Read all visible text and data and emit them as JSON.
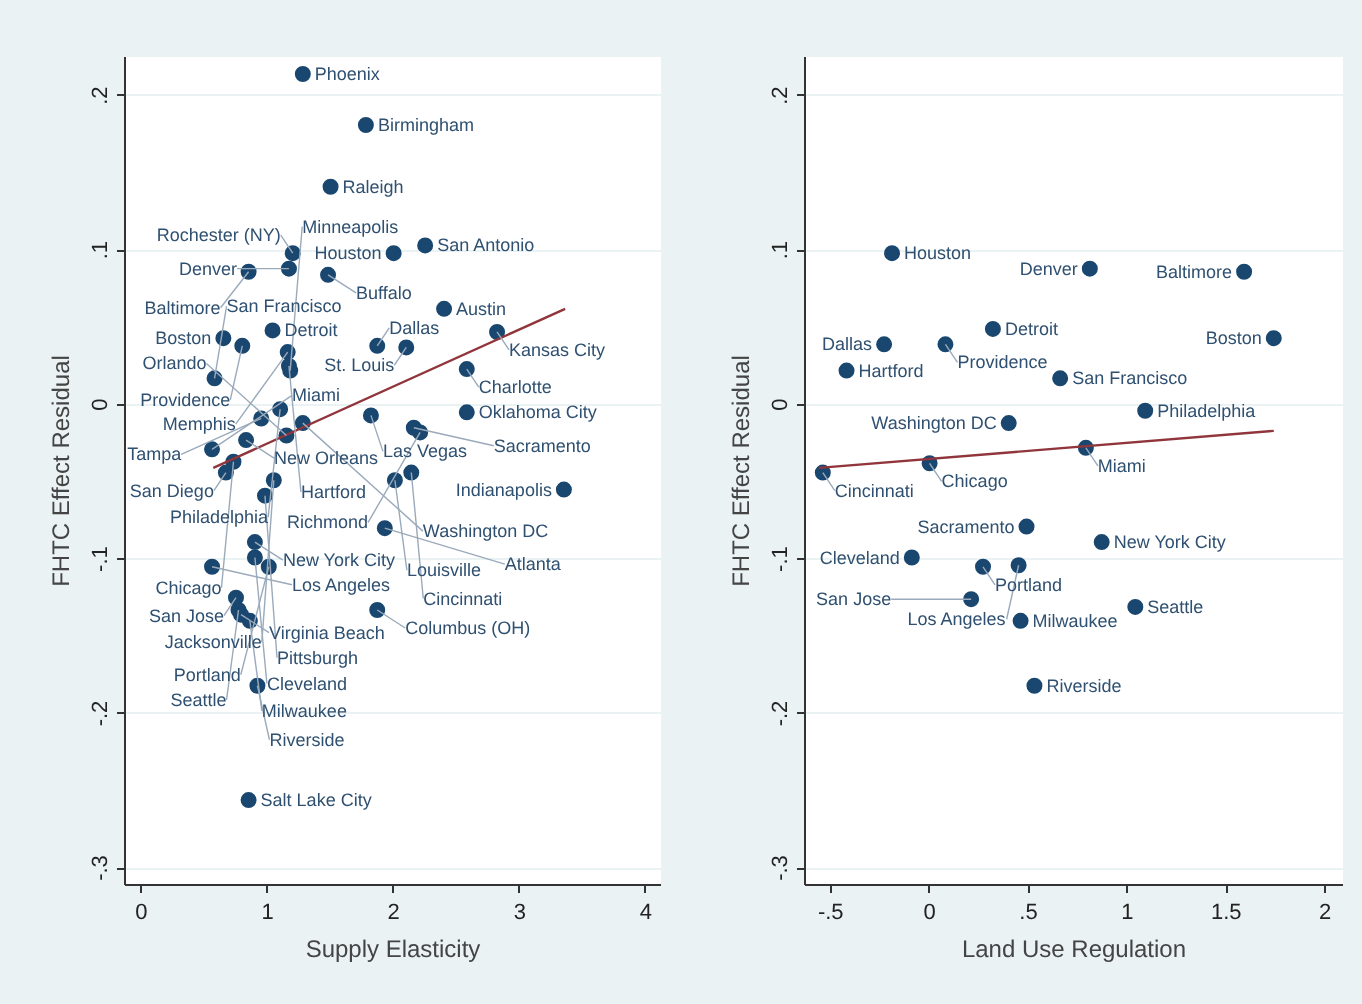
{
  "chart_data": [
    {
      "type": "scatter",
      "xlabel": "Supply Elasticity",
      "ylabel": "FHTC Effect Residual",
      "xlim": [
        -0.13,
        4.12
      ],
      "ylim": [
        -0.311,
        0.225
      ],
      "xticks": [
        0,
        1,
        2,
        3,
        4
      ],
      "yticks": [
        {
          "value": 0.2,
          "label": ".2"
        },
        {
          "value": 0.1,
          "label": ".1"
        },
        {
          "value": 0,
          "label": "0"
        },
        {
          "value": -0.1,
          "label": "-.1"
        },
        {
          "value": -0.2,
          "label": "-.2"
        },
        {
          "value": -0.3,
          "label": "-.3"
        }
      ],
      "grid": "y",
      "series": [
        {
          "type": "scatter",
          "marker": "circle",
          "color": "#1a476f",
          "x": [
            1.28,
            1.78,
            1.5,
            2.25,
            2.0,
            1.2,
            1.17,
            0.85,
            1.48,
            2.4,
            1.04,
            2.82,
            0.65,
            0.8,
            1.87,
            2.1,
            1.16,
            2.58,
            1.17,
            1.18,
            0.58,
            1.1,
            1.82,
            2.58,
            0.95,
            1.28,
            2.16,
            2.21,
            1.15,
            0.83,
            0.56,
            0.73,
            0.67,
            1.05,
            2.01,
            2.14,
            3.35,
            0.98,
            1.93,
            0.9,
            0.9,
            0.56,
            1.01,
            0.75,
            0.77,
            0.79,
            0.86,
            1.87,
            0.92,
            0.85
          ],
          "values": [
            0.214,
            0.181,
            0.141,
            0.103,
            0.098,
            0.098,
            0.088,
            0.086,
            0.084,
            0.062,
            0.048,
            0.047,
            0.043,
            0.038,
            0.038,
            0.037,
            0.034,
            0.023,
            0.025,
            0.022,
            0.017,
            -0.003,
            -0.007,
            -0.005,
            -0.009,
            -0.012,
            -0.015,
            -0.018,
            -0.02,
            -0.023,
            -0.029,
            -0.037,
            -0.044,
            -0.049,
            -0.049,
            -0.044,
            -0.055,
            -0.059,
            -0.08,
            -0.089,
            -0.099,
            -0.105,
            -0.105,
            -0.125,
            -0.133,
            -0.136,
            -0.14,
            -0.133,
            -0.182,
            -0.256
          ]
        },
        {
          "type": "line",
          "marker": "none",
          "color": "#90353b",
          "x": [
            0.57,
            3.36
          ],
          "values": [
            -0.041,
            0.062
          ]
        }
      ],
      "annotations": [
        {
          "text": "Phoenix",
          "x": 1.28,
          "y": 0.214
        },
        {
          "text": "Birmingham",
          "x": 1.78,
          "y": 0.181
        },
        {
          "text": "Raleigh",
          "x": 1.5,
          "y": 0.141
        },
        {
          "text": "San Antonio",
          "x": 2.25,
          "y": 0.103
        },
        {
          "text": "Houston",
          "x": 2.0,
          "y": 0.098
        },
        {
          "text": "Rochester (NY)",
          "x": 1.2,
          "y": 0.098
        },
        {
          "text": "Denver",
          "x": 1.17,
          "y": 0.088
        },
        {
          "text": "Baltimore",
          "x": 0.85,
          "y": 0.086
        },
        {
          "text": "Buffalo",
          "x": 1.48,
          "y": 0.084
        },
        {
          "text": "Austin",
          "x": 2.4,
          "y": 0.062
        },
        {
          "text": "Detroit",
          "x": 1.04,
          "y": 0.048
        },
        {
          "text": "Kansas City",
          "x": 2.82,
          "y": 0.047
        },
        {
          "text": "Boston",
          "x": 0.65,
          "y": 0.043
        },
        {
          "text": "Providence",
          "x": 0.8,
          "y": 0.038
        },
        {
          "text": "Dallas",
          "x": 1.87,
          "y": 0.038
        },
        {
          "text": "St. Louis",
          "x": 2.1,
          "y": 0.037
        },
        {
          "text": "Memphis",
          "x": 1.16,
          "y": 0.034
        },
        {
          "text": "Charlotte",
          "x": 2.58,
          "y": 0.023
        },
        {
          "text": "Hartford",
          "x": 1.17,
          "y": 0.025
        },
        {
          "text": "Minneapolis",
          "x": 1.18,
          "y": 0.022
        },
        {
          "text": "San Francisco",
          "x": 0.58,
          "y": 0.017
        },
        {
          "text": "Philadelphia",
          "x": 1.1,
          "y": -0.003
        },
        {
          "text": "Las Vegas",
          "x": 1.82,
          "y": -0.007
        },
        {
          "text": "Oklahoma City",
          "x": 2.58,
          "y": -0.005
        },
        {
          "text": "Tampa",
          "x": 0.95,
          "y": -0.009
        },
        {
          "text": "Washington DC",
          "x": 1.28,
          "y": -0.012
        },
        {
          "text": "Sacramento",
          "x": 2.16,
          "y": -0.015
        },
        {
          "text": "Richmond",
          "x": 2.21,
          "y": -0.018
        },
        {
          "text": "Orlando",
          "x": 1.15,
          "y": -0.02
        },
        {
          "text": "New Orleans",
          "x": 0.83,
          "y": -0.023
        },
        {
          "text": "Miami",
          "x": 0.56,
          "y": -0.029
        },
        {
          "text": "Chicago",
          "x": 0.73,
          "y": -0.037
        },
        {
          "text": "San Diego",
          "x": 0.67,
          "y": -0.044
        },
        {
          "text": "Jacksonville",
          "x": 1.05,
          "y": -0.049
        },
        {
          "text": "Louisville",
          "x": 2.01,
          "y": -0.049
        },
        {
          "text": "Cincinnati",
          "x": 2.14,
          "y": -0.044
        },
        {
          "text": "Indianapolis",
          "x": 3.35,
          "y": -0.055
        },
        {
          "text": "Pittsburgh",
          "x": 0.98,
          "y": -0.059
        },
        {
          "text": "Atlanta",
          "x": 1.93,
          "y": -0.08
        },
        {
          "text": "New York City",
          "x": 0.9,
          "y": -0.089
        },
        {
          "text": "Cleveland",
          "x": 0.9,
          "y": -0.099
        },
        {
          "text": "Los Angeles",
          "x": 0.56,
          "y": -0.105
        },
        {
          "text": "Portland",
          "x": 1.01,
          "y": -0.105
        },
        {
          "text": "San Jose",
          "x": 0.75,
          "y": -0.125
        },
        {
          "text": "Seattle",
          "x": 0.77,
          "y": -0.133
        },
        {
          "text": "Virginia Beach",
          "x": 0.79,
          "y": -0.136
        },
        {
          "text": "Milwaukee",
          "x": 0.86,
          "y": -0.14
        },
        {
          "text": "Columbus (OH)",
          "x": 1.87,
          "y": -0.133
        },
        {
          "text": "Riverside",
          "x": 0.92,
          "y": -0.182
        },
        {
          "text": "Salt Lake City",
          "x": 0.85,
          "y": -0.256
        }
      ]
    },
    {
      "type": "scatter",
      "xlabel": "Land Use Regulation",
      "ylabel": "FHTC Effect Residual",
      "xlim": [
        -0.63,
        2.09
      ],
      "ylim": [
        -0.311,
        0.225
      ],
      "xticks": [
        {
          "value": -0.5,
          "label": "-.5"
        },
        0,
        {
          "value": 0.5,
          "label": ".5"
        },
        1,
        1.5,
        2
      ],
      "yticks": [
        {
          "value": 0.2,
          "label": ".2"
        },
        {
          "value": 0.1,
          "label": ".1"
        },
        {
          "value": 0,
          "label": "0"
        },
        {
          "value": -0.1,
          "label": "-.1"
        },
        {
          "value": -0.2,
          "label": "-.2"
        },
        {
          "value": -0.3,
          "label": "-.3"
        }
      ],
      "grid": "y",
      "series": [
        {
          "type": "scatter",
          "marker": "circle",
          "color": "#1a476f",
          "x": [
            -0.19,
            0.81,
            1.59,
            0.32,
            -0.23,
            0.08,
            1.74,
            -0.42,
            0.66,
            1.09,
            0.4,
            0.79,
            0.0,
            -0.54,
            0.49,
            0.87,
            -0.09,
            0.27,
            0.45,
            0.21,
            1.04,
            0.46,
            0.53
          ],
          "values": [
            0.098,
            0.088,
            0.086,
            0.049,
            0.039,
            0.039,
            0.043,
            0.022,
            0.017,
            -0.004,
            -0.012,
            -0.028,
            -0.038,
            -0.044,
            -0.079,
            -0.089,
            -0.099,
            -0.105,
            -0.104,
            -0.126,
            -0.131,
            -0.14,
            -0.182
          ]
        },
        {
          "type": "line",
          "marker": "none",
          "color": "#90353b",
          "x": [
            -0.56,
            1.74
          ],
          "values": [
            -0.041,
            -0.017
          ]
        }
      ],
      "annotations": [
        {
          "text": "Houston",
          "x": -0.19,
          "y": 0.098
        },
        {
          "text": "Denver",
          "x": 0.81,
          "y": 0.088
        },
        {
          "text": "Baltimore",
          "x": 1.59,
          "y": 0.086
        },
        {
          "text": "Detroit",
          "x": 0.32,
          "y": 0.049
        },
        {
          "text": "Dallas",
          "x": -0.23,
          "y": 0.039
        },
        {
          "text": "Providence",
          "x": 0.08,
          "y": 0.039
        },
        {
          "text": "Boston",
          "x": 1.74,
          "y": 0.043
        },
        {
          "text": "Hartford",
          "x": -0.42,
          "y": 0.022
        },
        {
          "text": "San Francisco",
          "x": 0.66,
          "y": 0.017
        },
        {
          "text": "Philadelphia",
          "x": 1.09,
          "y": -0.004
        },
        {
          "text": "Washington DC",
          "x": 0.4,
          "y": -0.012
        },
        {
          "text": "Miami",
          "x": 0.79,
          "y": -0.028
        },
        {
          "text": "Chicago",
          "x": 0.0,
          "y": -0.038
        },
        {
          "text": "Cincinnati",
          "x": -0.54,
          "y": -0.044
        },
        {
          "text": "Sacramento",
          "x": 0.49,
          "y": -0.079
        },
        {
          "text": "New York City",
          "x": 0.87,
          "y": -0.089
        },
        {
          "text": "Cleveland",
          "x": -0.09,
          "y": -0.099
        },
        {
          "text": "Portland",
          "x": 0.27,
          "y": -0.105
        },
        {
          "text": "Los Angeles",
          "x": 0.45,
          "y": -0.104
        },
        {
          "text": "San Jose",
          "x": 0.21,
          "y": -0.126
        },
        {
          "text": "Seattle",
          "x": 1.04,
          "y": -0.131
        },
        {
          "text": "Milwaukee",
          "x": 0.46,
          "y": -0.14
        },
        {
          "text": "Riverside",
          "x": 0.53,
          "y": -0.182
        }
      ]
    }
  ]
}
